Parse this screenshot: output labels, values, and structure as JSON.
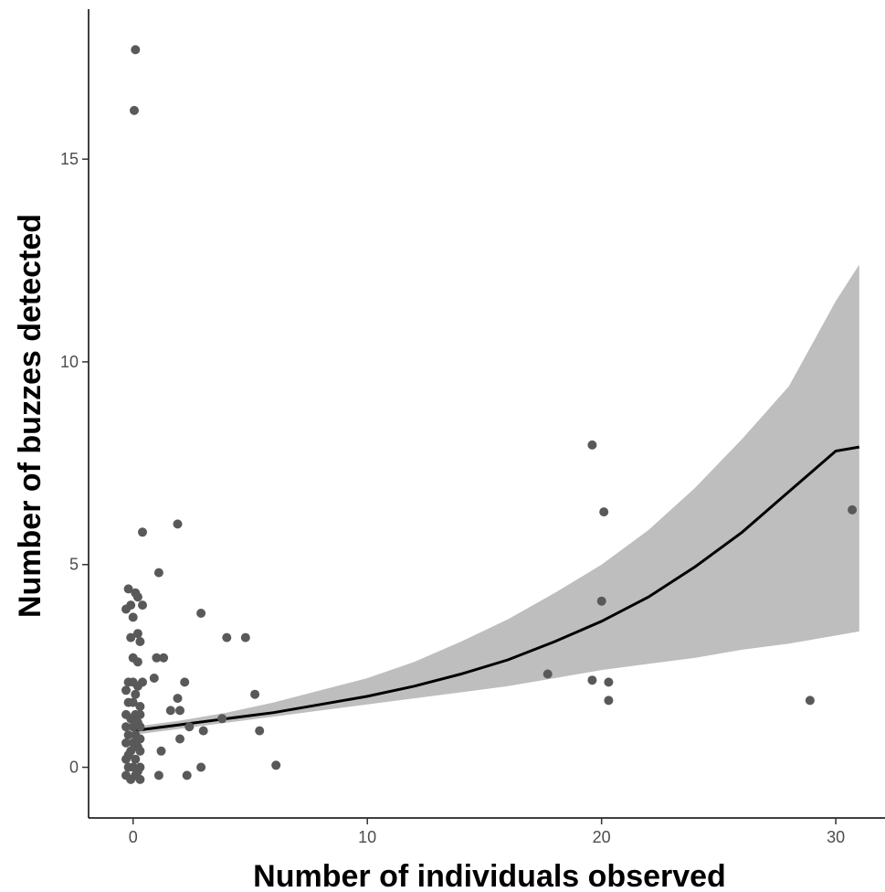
{
  "chart_data": {
    "type": "scatter",
    "title": "",
    "xlabel": "Number of individuals observed",
    "ylabel": "Number of buzzes detected",
    "xlim": [
      -1.9,
      32.1
    ],
    "ylim": [
      -1.25,
      18.7
    ],
    "x_ticks": [
      0,
      10,
      20,
      30
    ],
    "y_ticks": [
      0,
      5,
      10,
      15
    ],
    "x_tick_labels": [
      "0",
      "10",
      "20",
      "30"
    ],
    "y_tick_labels": [
      "0",
      "5",
      "10",
      "15"
    ],
    "grid": false,
    "legend": "none",
    "colors": {
      "points": "#595959",
      "ribbon": "#bebebe",
      "fit_line": "#000000",
      "axis": "#000000",
      "tick_text": "#4d4d4d"
    },
    "points": [
      [
        0.1,
        17.7
      ],
      [
        0.05,
        16.2
      ],
      [
        0.4,
        5.8
      ],
      [
        1.9,
        6.0
      ],
      [
        1.1,
        4.8
      ],
      [
        2.9,
        3.8
      ],
      [
        4.0,
        3.2
      ],
      [
        4.8,
        3.2
      ],
      [
        1.0,
        2.7
      ],
      [
        1.3,
        2.7
      ],
      [
        0.9,
        2.2
      ],
      [
        2.2,
        2.1
      ],
      [
        5.2,
        1.8
      ],
      [
        1.9,
        1.7
      ],
      [
        1.6,
        1.4
      ],
      [
        2.0,
        1.4
      ],
      [
        3.8,
        1.2
      ],
      [
        2.4,
        1.0
      ],
      [
        5.4,
        0.9
      ],
      [
        2.0,
        0.7
      ],
      [
        3.0,
        0.9
      ],
      [
        1.2,
        0.4
      ],
      [
        1.1,
        -0.2
      ],
      [
        2.3,
        -0.2
      ],
      [
        2.9,
        0.0
      ],
      [
        6.1,
        0.05
      ],
      [
        -0.2,
        4.4
      ],
      [
        0.1,
        4.3
      ],
      [
        0.2,
        4.2
      ],
      [
        -0.1,
        4.0
      ],
      [
        0.4,
        4.0
      ],
      [
        -0.3,
        3.9
      ],
      [
        0.0,
        3.7
      ],
      [
        0.2,
        3.3
      ],
      [
        -0.1,
        3.2
      ],
      [
        0.3,
        3.1
      ],
      [
        0.0,
        2.7
      ],
      [
        0.2,
        2.6
      ],
      [
        -0.2,
        2.1
      ],
      [
        0.0,
        2.1
      ],
      [
        0.2,
        2.0
      ],
      [
        0.4,
        2.1
      ],
      [
        -0.3,
        1.9
      ],
      [
        0.1,
        1.8
      ],
      [
        -0.2,
        1.6
      ],
      [
        0.0,
        1.6
      ],
      [
        0.3,
        1.5
      ],
      [
        -0.3,
        1.3
      ],
      [
        0.1,
        1.3
      ],
      [
        0.3,
        1.3
      ],
      [
        -0.1,
        1.2
      ],
      [
        0.2,
        1.1
      ],
      [
        -0.3,
        1.0
      ],
      [
        0.0,
        1.0
      ],
      [
        0.3,
        1.0
      ],
      [
        -0.2,
        0.8
      ],
      [
        0.1,
        0.8
      ],
      [
        0.3,
        0.7
      ],
      [
        -0.3,
        0.6
      ],
      [
        0.0,
        0.6
      ],
      [
        0.2,
        0.5
      ],
      [
        -0.1,
        0.4
      ],
      [
        0.3,
        0.4
      ],
      [
        -0.3,
        0.2
      ],
      [
        0.1,
        0.2
      ],
      [
        -0.2,
        0.0
      ],
      [
        0.0,
        0.0
      ],
      [
        0.3,
        0.0
      ],
      [
        -0.3,
        -0.2
      ],
      [
        0.1,
        -0.2
      ],
      [
        0.3,
        -0.3
      ],
      [
        -0.1,
        -0.3
      ],
      [
        0.2,
        -0.1
      ],
      [
        -0.2,
        0.3
      ],
      [
        17.7,
        2.3
      ],
      [
        19.6,
        7.95
      ],
      [
        20.1,
        6.3
      ],
      [
        20.0,
        4.1
      ],
      [
        19.6,
        2.15
      ],
      [
        20.3,
        2.1
      ],
      [
        20.3,
        1.65
      ],
      [
        28.9,
        1.65
      ],
      [
        30.7,
        6.35
      ]
    ],
    "fit_line": {
      "x": [
        0,
        2,
        4,
        6,
        8,
        10,
        12,
        14,
        16,
        18,
        20,
        22,
        24,
        26,
        28,
        30,
        31
      ],
      "y": [
        0.9,
        1.05,
        1.2,
        1.35,
        1.55,
        1.75,
        2.0,
        2.3,
        2.65,
        3.1,
        3.6,
        4.2,
        4.95,
        5.8,
        6.8,
        7.8,
        7.9
      ]
    },
    "confidence_band": {
      "x": [
        0,
        2,
        4,
        6,
        8,
        10,
        12,
        14,
        16,
        18,
        20,
        22,
        24,
        26,
        28,
        30,
        31
      ],
      "upper": [
        1.0,
        1.15,
        1.35,
        1.6,
        1.9,
        2.2,
        2.6,
        3.1,
        3.65,
        4.3,
        5.0,
        5.85,
        6.9,
        8.1,
        9.4,
        11.5,
        12.4
      ],
      "lower": [
        0.8,
        0.95,
        1.1,
        1.25,
        1.4,
        1.55,
        1.7,
        1.85,
        2.0,
        2.2,
        2.4,
        2.55,
        2.7,
        2.9,
        3.05,
        3.25,
        3.35
      ]
    }
  }
}
